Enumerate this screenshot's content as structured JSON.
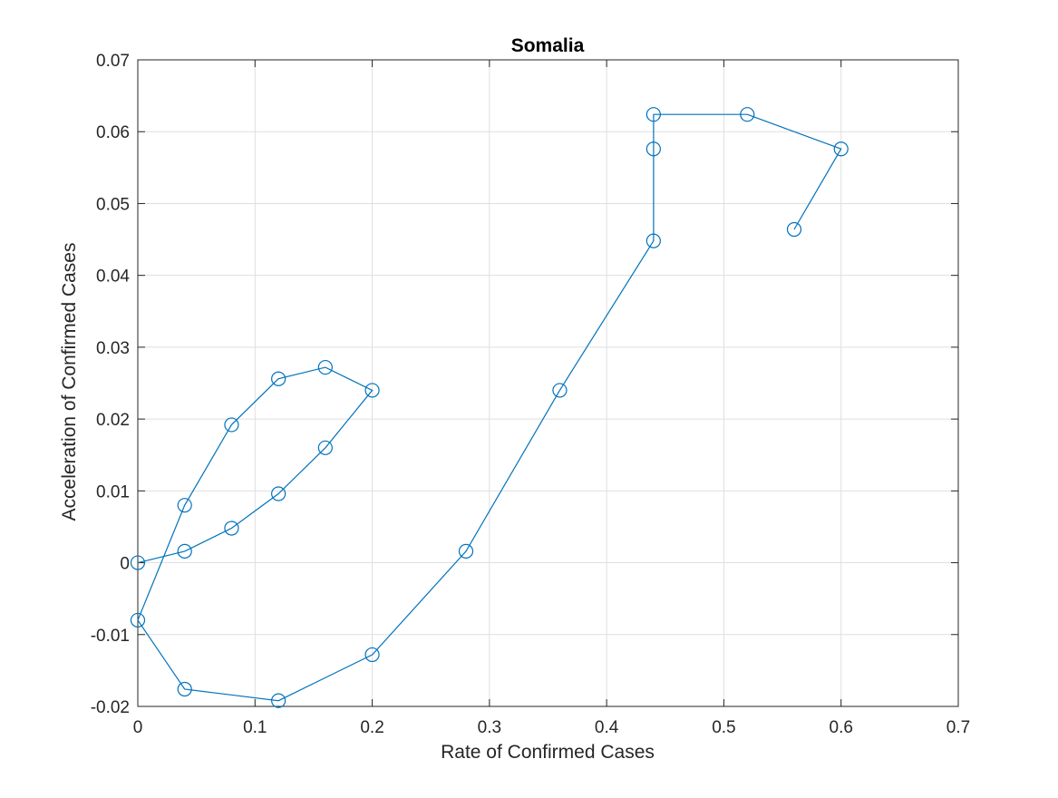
{
  "chart_data": {
    "type": "line",
    "title": "Somalia",
    "xlabel": "Rate of Confirmed Cases",
    "ylabel": "Acceleration of Confirmed Cases",
    "xlim": [
      0,
      0.7
    ],
    "ylim": [
      -0.02,
      0.07
    ],
    "xticks": [
      0,
      0.1,
      0.2,
      0.3,
      0.4,
      0.5,
      0.6,
      0.7
    ],
    "xtick_labels": [
      "0",
      "0.1",
      "0.2",
      "0.3",
      "0.4",
      "0.5",
      "0.6",
      "0.7"
    ],
    "yticks": [
      -0.02,
      -0.01,
      0,
      0.01,
      0.02,
      0.03,
      0.04,
      0.05,
      0.06,
      0.07
    ],
    "ytick_labels": [
      "-0.02",
      "-0.01",
      "0",
      "0.01",
      "0.02",
      "0.03",
      "0.04",
      "0.05",
      "0.06",
      "0.07"
    ],
    "grid": true,
    "marker": "circle",
    "color": "#0072BD",
    "series": [
      {
        "x": [
          0,
          0.04,
          0.08,
          0.12,
          0.16,
          0.2,
          0.16,
          0.12,
          0.08,
          0.04,
          0,
          0.04,
          0.12,
          0.2,
          0.28,
          0.36,
          0.44,
          0.44,
          0.44,
          0.52,
          0.6,
          0.56
        ],
        "y": [
          0,
          0.0016,
          0.0048,
          0.0096,
          0.016,
          0.024,
          0.0272,
          0.0256,
          0.0192,
          0.008,
          -0.008,
          -0.0176,
          -0.0192,
          -0.0128,
          0.0016,
          0.024,
          0.0448,
          0.0576,
          0.0624,
          0.0624,
          0.0576,
          0.0464
        ]
      }
    ]
  }
}
